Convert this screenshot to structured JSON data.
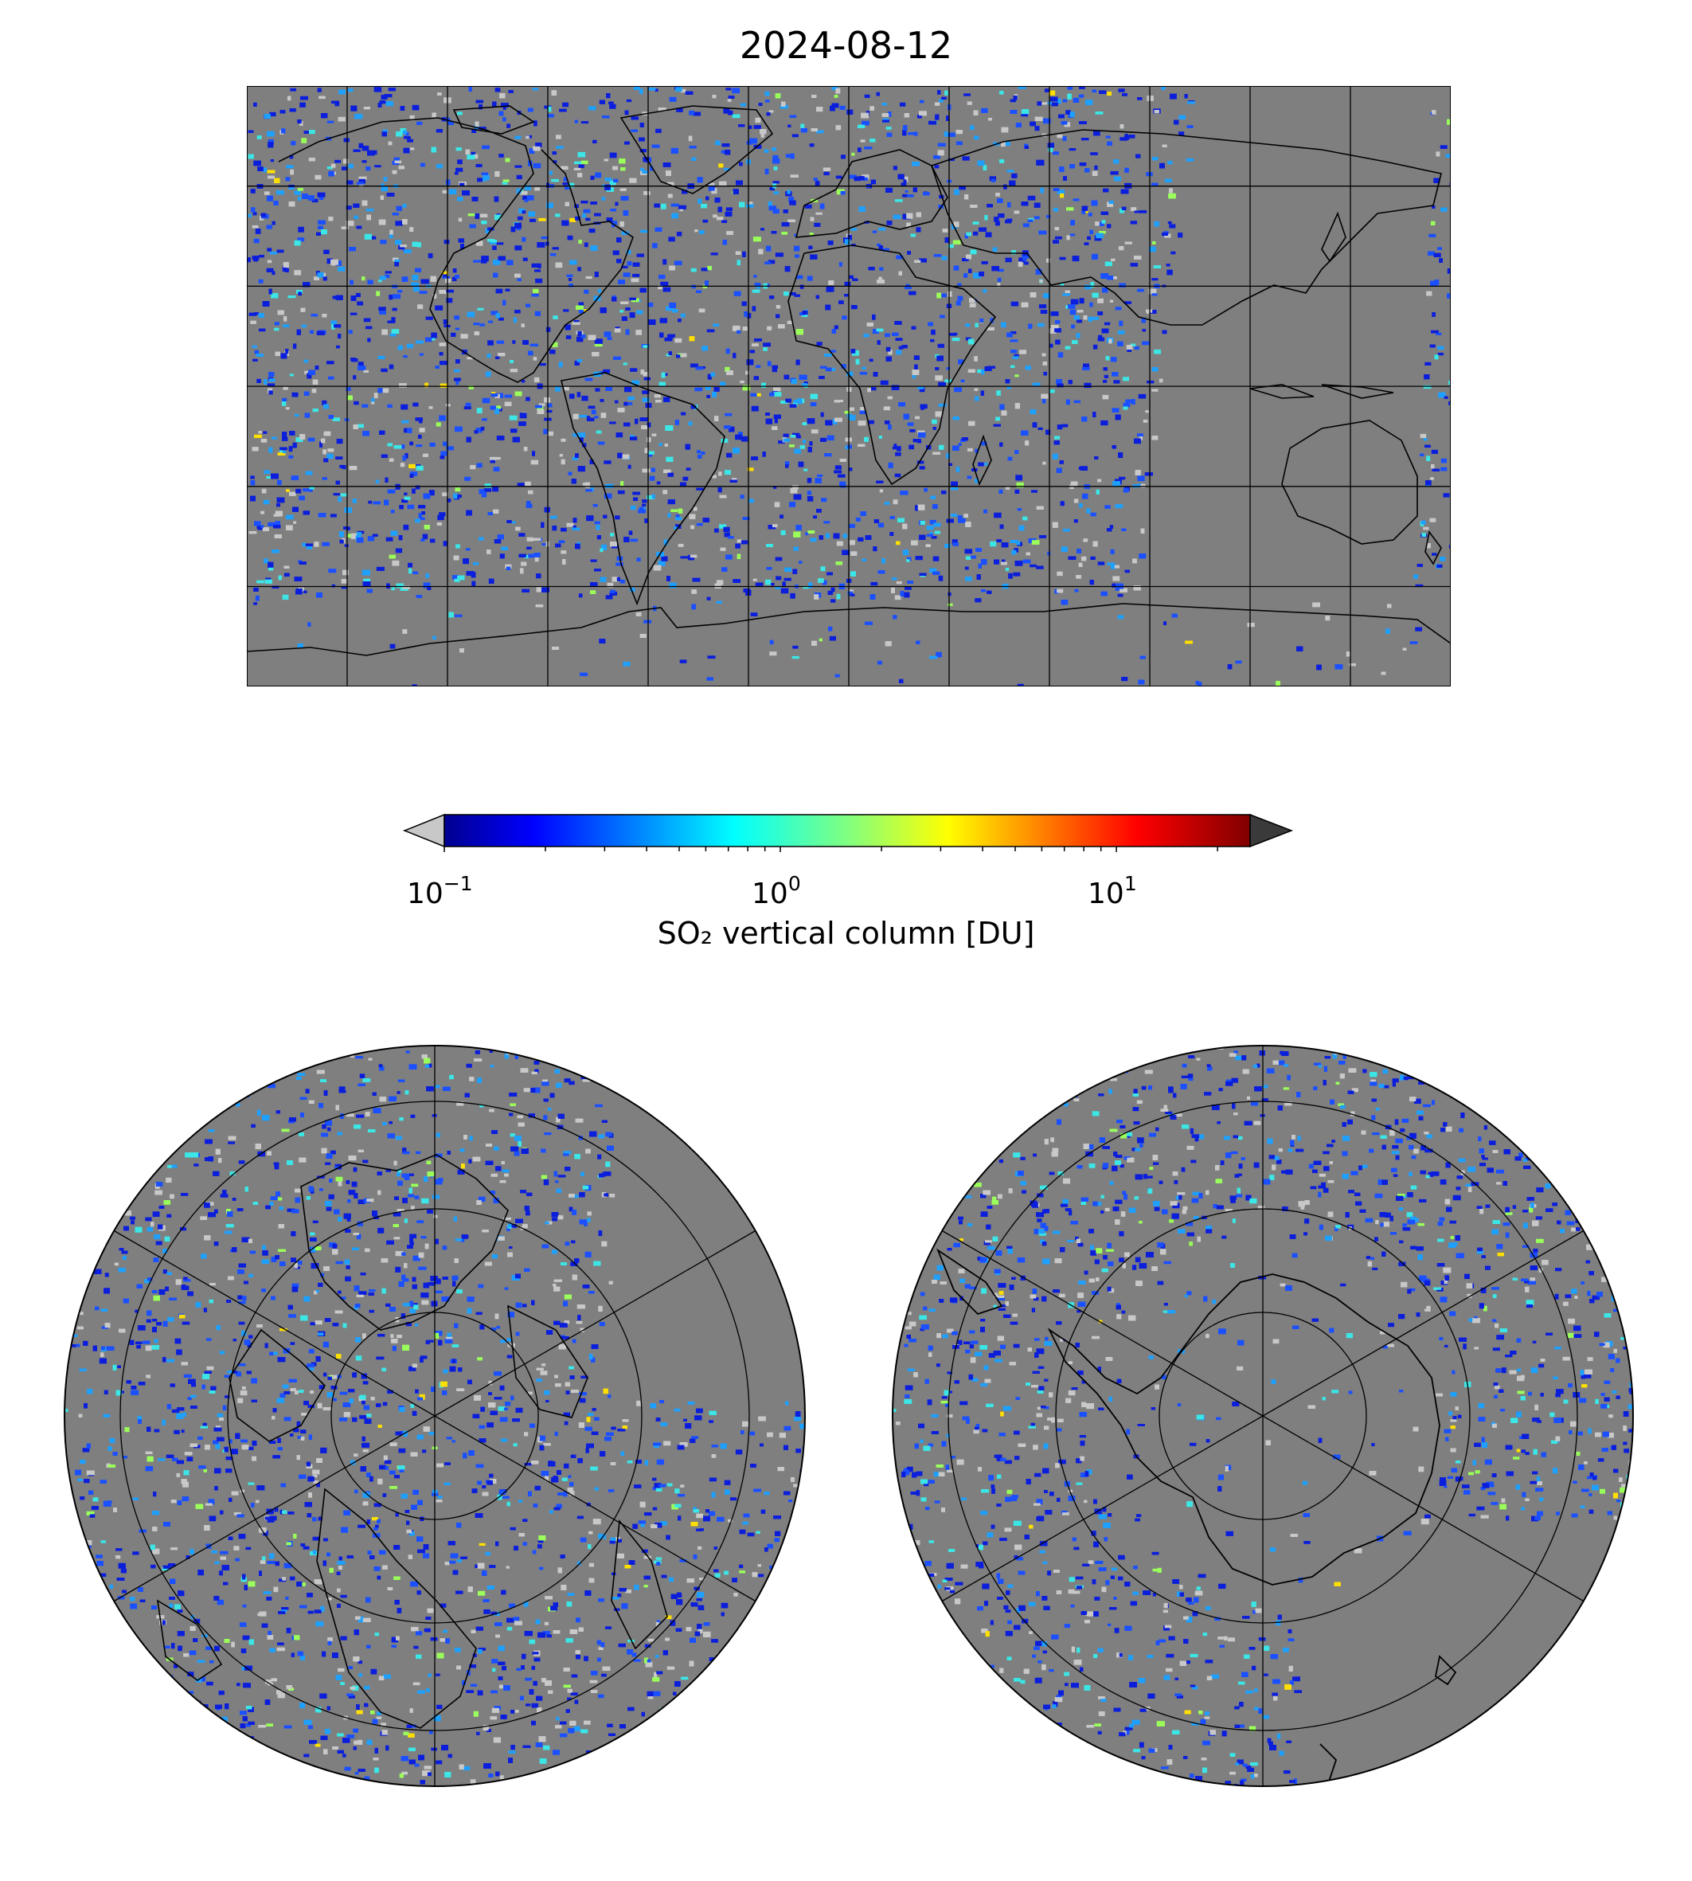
{
  "title": "2024-08-12",
  "colorbar": {
    "label": "SO₂ vertical column [DU]",
    "scale": "log",
    "range": [
      0.1,
      25
    ],
    "colormap": "jet",
    "extend": "both",
    "under_color": "#c8c8c8",
    "over_color": "#3a3a3a",
    "ticks": [
      {
        "base": "10",
        "exp": "−1"
      },
      {
        "base": "10",
        "exp": "0"
      },
      {
        "base": "10",
        "exp": "1"
      }
    ]
  },
  "maps": {
    "global": {
      "projection": "plate-carree",
      "background": "#7f7f7f",
      "gridlines": true
    },
    "north": {
      "projection": "north-polar-stereographic",
      "background": "#7f7f7f",
      "gridlines": true
    },
    "south": {
      "projection": "south-polar-stereographic",
      "background": "#7f7f7f",
      "gridlines": true
    }
  }
}
